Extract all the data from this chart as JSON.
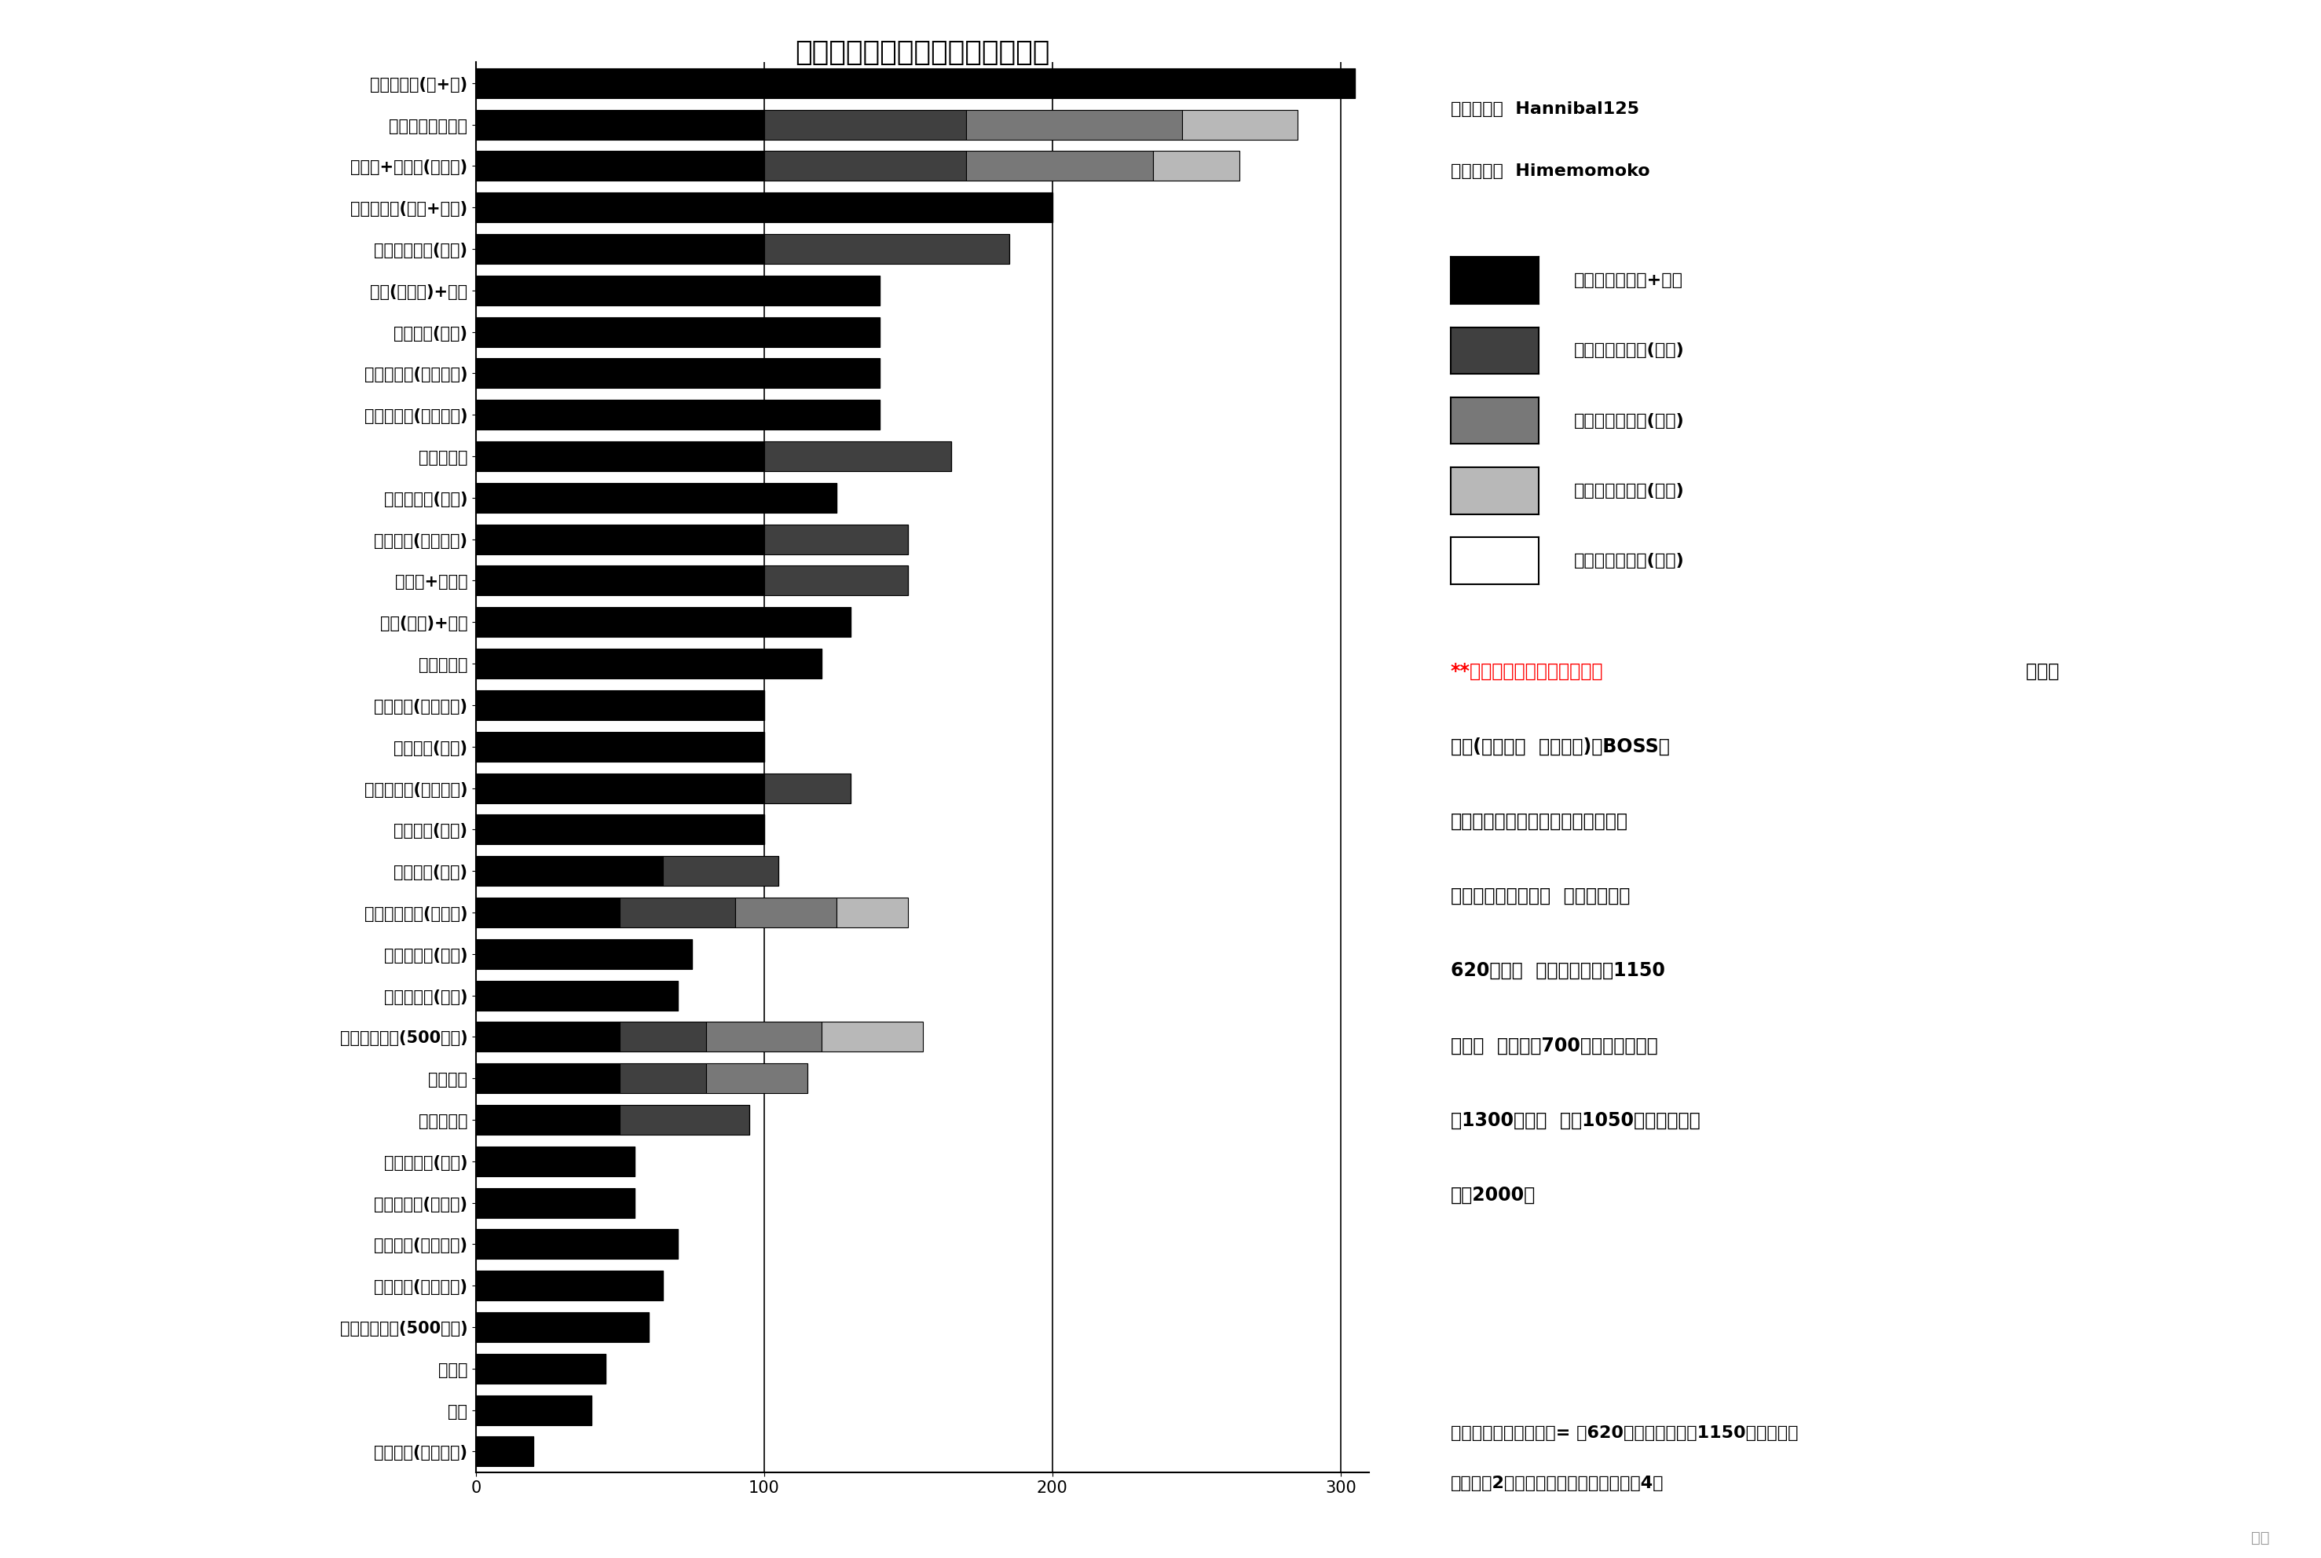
{
  "title": "躯干伤害（敌人没有防御动作时）",
  "categories": [
    "不死斩二连(蓄+蓄)",
    "血刀飞渡旋旋涡云",
    "仙峰脚+菩萨脚(拆下段)",
    "不死斩二连(不蓄+不蓄)",
    "血刀秘传一心(有纸)",
    "斧头(不蓄力)+追斩",
    "秘传一心(有纸)",
    "不死斩二连(无纸蓄力)",
    "机关伞释放(最高充能)",
    "飞渡旋涡云",
    "一字斩二连(蓄力)",
    "秘传龙闪(蓄力有纸)",
    "仙峰脚+菩萨脚",
    "斧头(蓄力)+追斩",
    "一字斩二连",
    "秘传龙闪(不蓄有纸)",
    "巨忍突刺(蓄力)",
    "不死斩二连(无纸不蓄)",
    "巨忍突刺(不蓄)",
    "秘传一心(无纸)",
    "叩拜拳三连击(不蓄力)",
    "苇名十字斩(有纸)",
    "苇名十字斩(无纸)",
    "金钱镖无追斩(500蓄力)",
    "飞渡浮舟",
    "寄鹰斩二连",
    "破魔叩拜拳(蓄力)",
    "机关伞释放(无充能)",
    "秘传龙闪(不蓄无纸)",
    "秘传龙闪(蓄力无纸)",
    "金钱镖无追斩(500不蓄)",
    "旋风斩",
    "平砍",
    "蓄力平砍(你没看错)"
  ],
  "segments": [
    [
      305,
      0,
      0,
      0,
      0
    ],
    [
      100,
      70,
      75,
      40,
      0
    ],
    [
      100,
      70,
      65,
      30,
      0
    ],
    [
      200,
      0,
      0,
      0,
      0
    ],
    [
      100,
      85,
      0,
      0,
      0
    ],
    [
      140,
      0,
      0,
      0,
      0
    ],
    [
      140,
      0,
      0,
      0,
      0
    ],
    [
      140,
      0,
      0,
      0,
      0
    ],
    [
      140,
      0,
      0,
      0,
      0
    ],
    [
      100,
      65,
      0,
      0,
      0
    ],
    [
      125,
      0,
      0,
      0,
      0
    ],
    [
      100,
      50,
      0,
      0,
      0
    ],
    [
      100,
      50,
      0,
      0,
      0
    ],
    [
      130,
      0,
      0,
      0,
      0
    ],
    [
      120,
      0,
      0,
      0,
      0
    ],
    [
      100,
      0,
      0,
      0,
      0
    ],
    [
      100,
      0,
      0,
      0,
      0
    ],
    [
      100,
      30,
      0,
      0,
      0
    ],
    [
      100,
      0,
      0,
      0,
      0
    ],
    [
      65,
      40,
      0,
      0,
      0
    ],
    [
      50,
      40,
      35,
      25,
      0
    ],
    [
      75,
      0,
      0,
      0,
      0
    ],
    [
      70,
      0,
      0,
      0,
      0
    ],
    [
      50,
      30,
      40,
      35,
      0
    ],
    [
      50,
      30,
      35,
      0,
      0
    ],
    [
      50,
      45,
      0,
      0,
      0
    ],
    [
      55,
      0,
      0,
      0,
      0
    ],
    [
      55,
      0,
      0,
      0,
      0
    ],
    [
      70,
      0,
      0,
      0,
      0
    ],
    [
      65,
      0,
      0,
      0,
      0
    ],
    [
      60,
      0,
      0,
      0,
      0
    ],
    [
      45,
      0,
      0,
      0,
      0
    ],
    [
      40,
      0,
      0,
      0,
      0
    ],
    [
      20,
      0,
      0,
      0,
      0
    ]
  ],
  "colors": [
    "#000000",
    "#404040",
    "#787878",
    "#b8b8b8",
    "#ffffff"
  ],
  "legend_labels": [
    "第一次输入格挡+攻击",
    "第二次输入攻击(追击)",
    "第三次输入攻击(追击)",
    "第四次输入攻击(追击)",
    "第五次输入攻击(追击)"
  ],
  "credit_line1": "数据挖掘：  Hannibal125",
  "credit_line2": "数据分析：  Himemomoko",
  "note_red": "**数学不好请不要看这一段！",
  "note_black_after_red": " 将基准",
  "note_lines": [
    "难度(无钟鬼，  保留护符)的BOSS躯",
    "干值按每周目全战斗记忆进行标准化",
    "后（就是做除法），  剑圣每阶段约",
    "620点躯干  （二周目之后约1150",
    "点），  全盛义父700点（二周目之后",
    "约1300点），  怨鬼1050点（二周目之",
    "后约2000）"
  ],
  "bottom_note_line1": "剑圣一心标准化躯干值= 约620（一周目），约1150（多周目）",
  "bottom_note_line2": "一周目约2发蓄力不死斩二连，多周目约4发",
  "xlim": [
    0,
    310
  ],
  "xticks": [
    0,
    100,
    200,
    300
  ],
  "background_color": "#ffffff",
  "bar_edgecolor": "#000000",
  "title_fontsize": 26,
  "axis_label_fontsize": 16,
  "tick_fontsize": 15,
  "legend_fontsize": 16,
  "text_fontsize": 16,
  "note_fontsize": 17
}
